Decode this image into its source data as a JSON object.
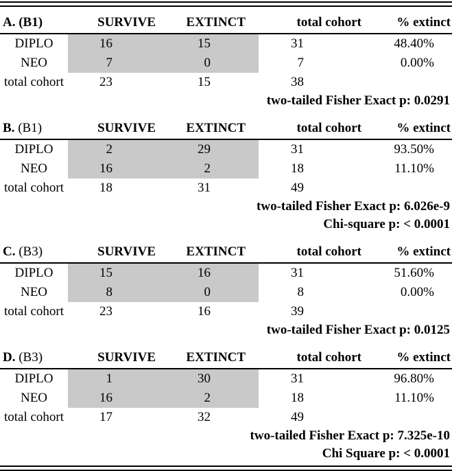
{
  "figure": {
    "shade_color": "#c9c9c9",
    "columns": [
      "SURVIVE",
      "EXTINCT",
      "total cohort",
      "% extinct"
    ],
    "panels": [
      {
        "label_bold": "A. (B1)",
        "label_regular": "",
        "rows": [
          {
            "label": "DIPLO",
            "survive": "16",
            "extinct": "15",
            "total_cohort": "31",
            "pct_extinct": "48.40%",
            "shaded": true
          },
          {
            "label": "NEO",
            "survive": "7",
            "extinct": "0",
            "total_cohort": "7",
            "pct_extinct": "0.00%",
            "shaded": true
          },
          {
            "label": "total cohort",
            "survive": "23",
            "extinct": "15",
            "total_cohort": "38",
            "pct_extinct": "",
            "shaded": false
          }
        ],
        "stats": [
          "two-tailed Fisher Exact p: 0.0291"
        ]
      },
      {
        "label_bold": "B.",
        "label_regular": " (B1)",
        "rows": [
          {
            "label": "DIPLO",
            "survive": "2",
            "extinct": "29",
            "total_cohort": "31",
            "pct_extinct": "93.50%",
            "shaded": true
          },
          {
            "label": "NEO",
            "survive": "16",
            "extinct": "2",
            "total_cohort": "18",
            "pct_extinct": "11.10%",
            "shaded": true
          },
          {
            "label": "total cohort",
            "survive": "18",
            "extinct": "31",
            "total_cohort": "49",
            "pct_extinct": "",
            "shaded": false
          }
        ],
        "stats": [
          "two-tailed Fisher Exact p: 6.026e-9",
          "Chi-square p: < 0.0001"
        ]
      },
      {
        "label_bold": "C.",
        "label_regular": " (B3)",
        "rows": [
          {
            "label": "DIPLO",
            "survive": "15",
            "extinct": "16",
            "total_cohort": "31",
            "pct_extinct": "51.60%",
            "shaded": true
          },
          {
            "label": "NEO",
            "survive": "8",
            "extinct": "0",
            "total_cohort": "8",
            "pct_extinct": "0.00%",
            "shaded": true
          },
          {
            "label": "total cohort",
            "survive": "23",
            "extinct": "16",
            "total_cohort": "39",
            "pct_extinct": "",
            "shaded": false
          }
        ],
        "stats": [
          "two-tailed Fisher Exact p: 0.0125"
        ]
      },
      {
        "label_bold": "D.",
        "label_regular": " (B3)",
        "rows": [
          {
            "label": "DIPLO",
            "survive": "1",
            "extinct": "30",
            "total_cohort": "31",
            "pct_extinct": "96.80%",
            "shaded": true
          },
          {
            "label": "NEO",
            "survive": "16",
            "extinct": "2",
            "total_cohort": "18",
            "pct_extinct": "11.10%",
            "shaded": true
          },
          {
            "label": "total cohort",
            "survive": "17",
            "extinct": "32",
            "total_cohort": "49",
            "pct_extinct": "",
            "shaded": false
          }
        ],
        "stats": [
          "two-tailed Fisher Exact p: 7.325e-10",
          "Chi Square p: < 0.0001"
        ]
      }
    ]
  }
}
